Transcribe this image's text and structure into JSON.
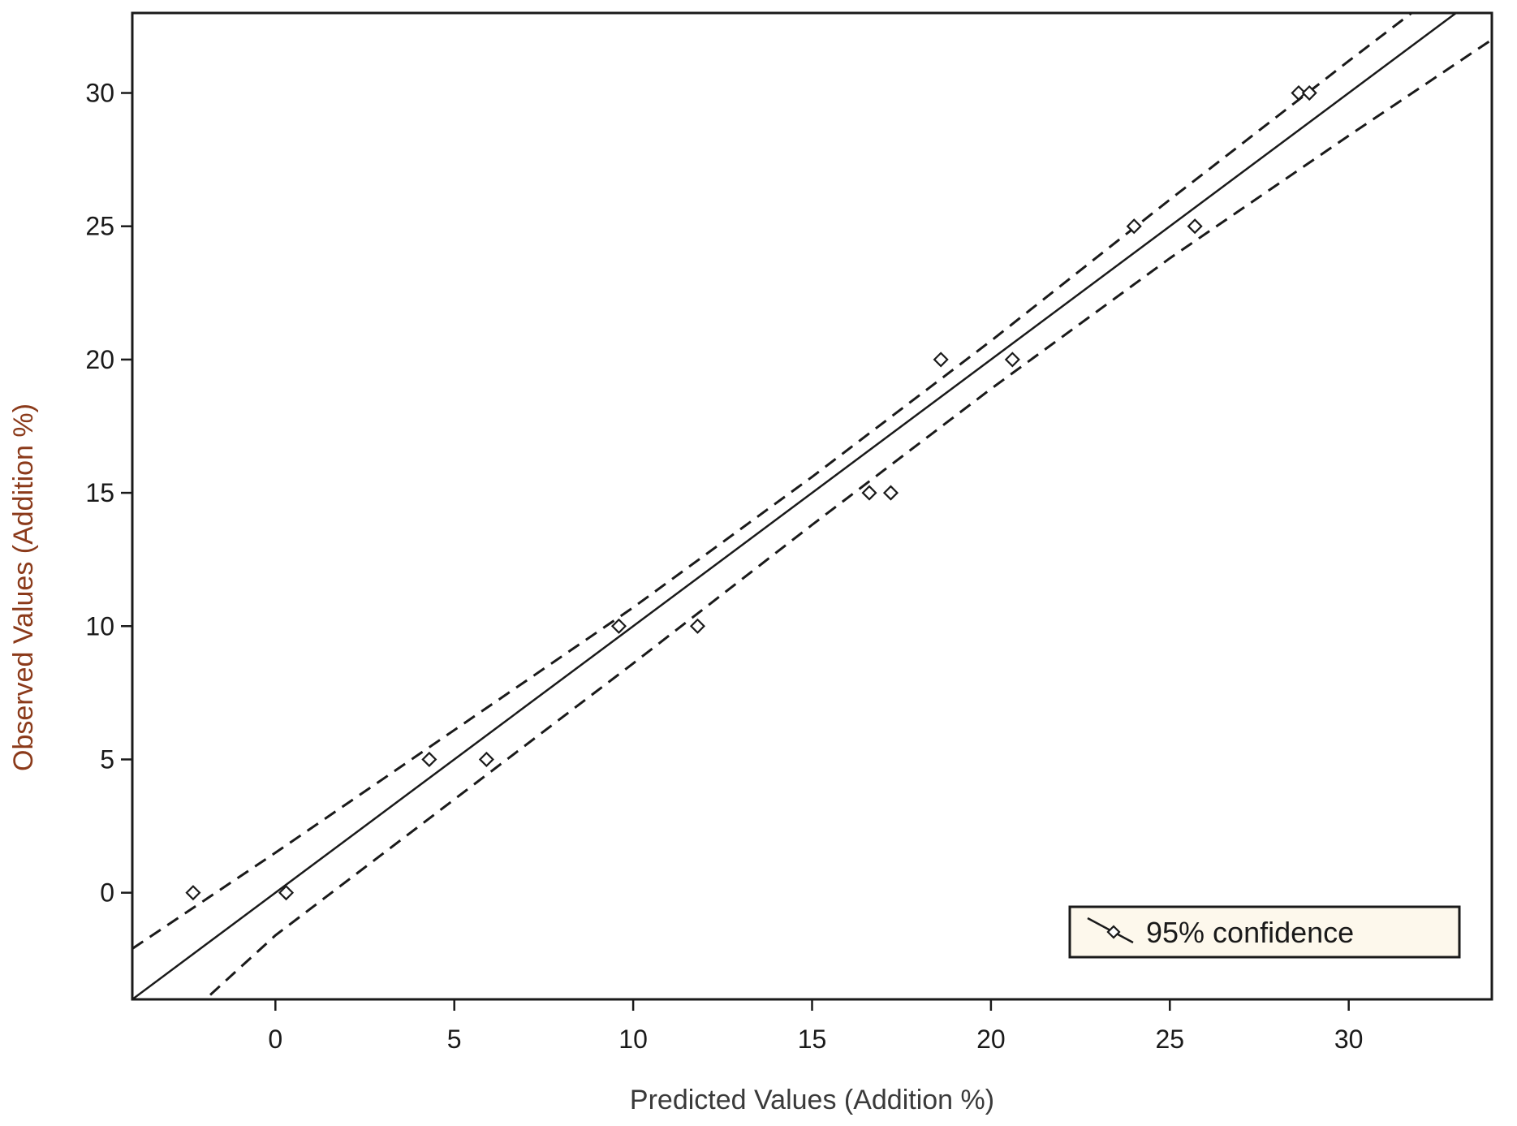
{
  "chart_data": {
    "type": "scatter",
    "title": "",
    "xlabel": "Predicted Values (Addition %)",
    "ylabel": "Observed Values (Addition %)",
    "xlim": [
      -4,
      34
    ],
    "ylim": [
      -4,
      33
    ],
    "xticks": [
      0,
      5,
      10,
      15,
      20,
      25,
      30
    ],
    "yticks": [
      0,
      5,
      10,
      15,
      20,
      25,
      30
    ],
    "grid": false,
    "legend": {
      "position": "bottom-right",
      "label": "95% confidence"
    },
    "points": [
      {
        "x": -2.3,
        "y": 0
      },
      {
        "x": 0.3,
        "y": 0
      },
      {
        "x": 4.3,
        "y": 5
      },
      {
        "x": 5.9,
        "y": 5
      },
      {
        "x": 9.6,
        "y": 10
      },
      {
        "x": 11.8,
        "y": 10
      },
      {
        "x": 16.6,
        "y": 15
      },
      {
        "x": 17.2,
        "y": 15
      },
      {
        "x": 18.6,
        "y": 20
      },
      {
        "x": 20.6,
        "y": 20
      },
      {
        "x": 24.0,
        "y": 25
      },
      {
        "x": 25.7,
        "y": 25
      },
      {
        "x": 28.6,
        "y": 30
      },
      {
        "x": 28.9,
        "y": 30
      }
    ],
    "fit_line": {
      "intercept": 0.0,
      "slope": 1.0
    },
    "confidence_upper": [
      {
        "x": -4,
        "y": -2.1
      },
      {
        "x": 0,
        "y": 1.5
      },
      {
        "x": 5,
        "y": 6.1
      },
      {
        "x": 10,
        "y": 10.7
      },
      {
        "x": 15,
        "y": 15.6
      },
      {
        "x": 20,
        "y": 20.7
      },
      {
        "x": 25,
        "y": 26.0
      },
      {
        "x": 30,
        "y": 31.2
      },
      {
        "x": 34,
        "y": 35.3
      }
    ],
    "confidence_lower": [
      {
        "x": -4,
        "y": -6.5
      },
      {
        "x": 0,
        "y": -1.6
      },
      {
        "x": 5,
        "y": 3.5
      },
      {
        "x": 10,
        "y": 8.6
      },
      {
        "x": 15,
        "y": 13.8
      },
      {
        "x": 20,
        "y": 18.9
      },
      {
        "x": 25,
        "y": 23.8
      },
      {
        "x": 30,
        "y": 28.4
      },
      {
        "x": 34,
        "y": 32.0
      }
    ]
  },
  "colors": {
    "xlabel": "#3a3a3a",
    "ylabel": "#8b3a1a",
    "legend_bg": "#fdf8ec",
    "ink": "#1a1a1a"
  }
}
